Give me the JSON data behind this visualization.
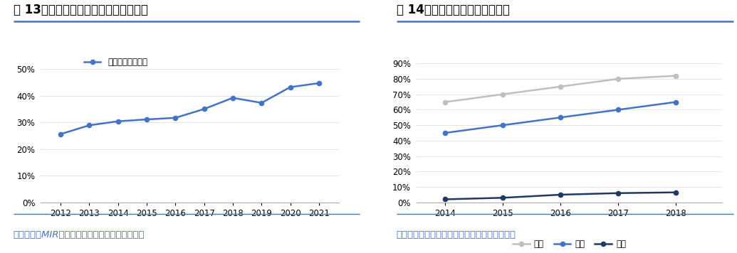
{
  "chart1": {
    "title": "图 13：中国金切机床数控化率逐年提升",
    "source": "数据来源：MIR、国家统计局、国泰君安证券研究",
    "legend_label": "金切机床数控化率",
    "years": [
      2012,
      2013,
      2014,
      2015,
      2016,
      2017,
      2018,
      2019,
      2020,
      2021
    ],
    "values": [
      0.256,
      0.289,
      0.304,
      0.311,
      0.317,
      0.35,
      0.392,
      0.373,
      0.432,
      0.447
    ],
    "line_color": "#4472C4",
    "marker": "o",
    "ylim": [
      0,
      0.55
    ],
    "yticks": [
      0.0,
      0.1,
      0.2,
      0.3,
      0.4,
      0.5
    ]
  },
  "chart2": {
    "title": "图 14：中国高端机床国产化率低",
    "source": "数据来源：前瞻产业研究院、国泰君安证券研究",
    "years": [
      2014,
      2015,
      2016,
      2017,
      2018
    ],
    "series": [
      {
        "label": "低端",
        "values": [
          0.65,
          0.7,
          0.75,
          0.8,
          0.82
        ],
        "color": "#BFBFBF",
        "marker": "o"
      },
      {
        "label": "中端",
        "values": [
          0.45,
          0.5,
          0.55,
          0.6,
          0.65
        ],
        "color": "#4472C4",
        "marker": "o"
      },
      {
        "label": "高端",
        "values": [
          0.02,
          0.03,
          0.05,
          0.06,
          0.065
        ],
        "color": "#1F3864",
        "marker": "o"
      }
    ],
    "ylim": [
      0,
      0.95
    ],
    "yticks": [
      0.0,
      0.1,
      0.2,
      0.3,
      0.4,
      0.5,
      0.6,
      0.7,
      0.8,
      0.9
    ]
  },
  "title_fontsize": 12,
  "source_fontsize": 9.5,
  "tick_fontsize": 8.5,
  "legend_fontsize": 8.5,
  "bg_color": "#FFFFFF",
  "title_color": "#000000",
  "source_color": "#4472C4",
  "divider_color": "#4472C4"
}
